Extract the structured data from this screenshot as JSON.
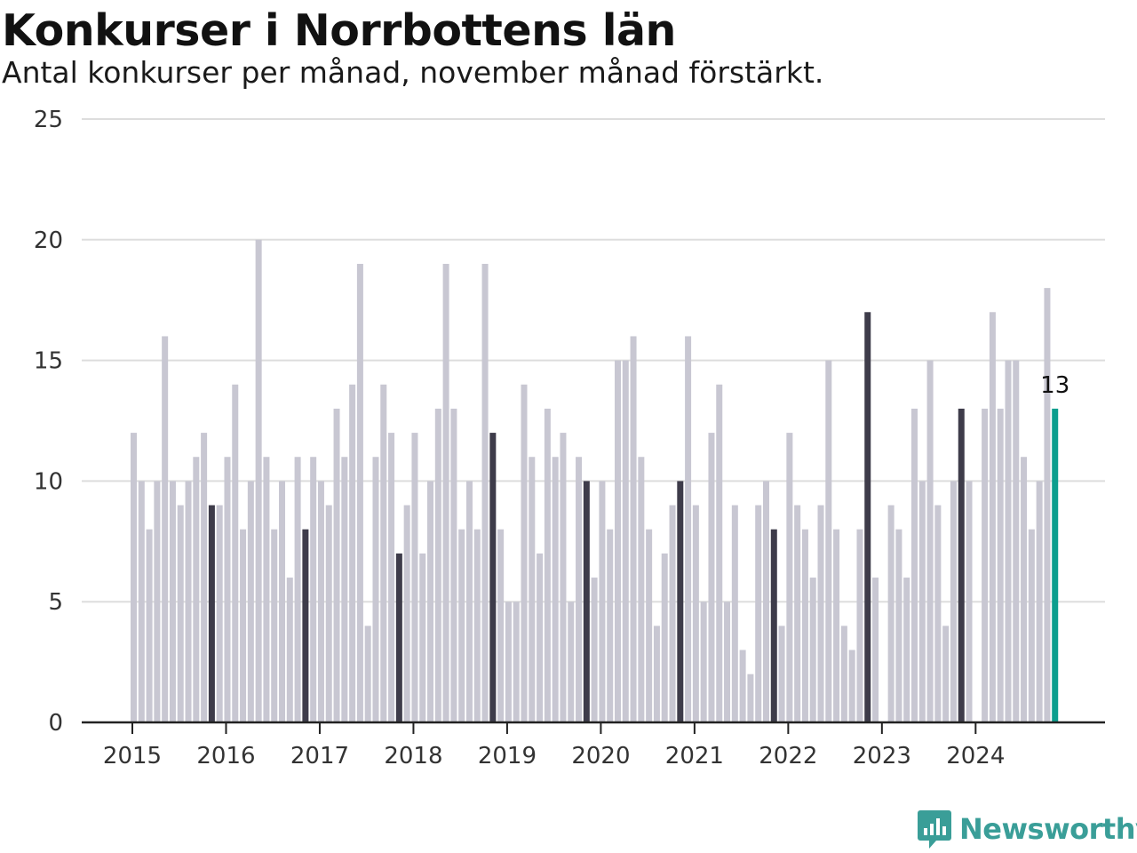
{
  "header": {
    "title": "Konkurser i Norrbottens län",
    "subtitle": "Antal konkurser per månad, november månad förstärkt."
  },
  "brand": {
    "name": "Newsworthy",
    "color": "#3a9e98",
    "icon": "bar-chart-speech-bubble-icon"
  },
  "colors": {
    "default": "#c8c7d2",
    "highlight": "#3e3c4a",
    "latest": "#0c9e8e",
    "grid": "#dddddd",
    "axis": "#222222"
  },
  "chart_data": {
    "type": "bar",
    "title": "Konkurser i Norrbottens län",
    "subtitle": "Antal konkurser per månad, november månad förstärkt.",
    "start": "2015-01",
    "ylim": [
      0,
      25
    ],
    "yticks": [
      0,
      5,
      10,
      15,
      20,
      25
    ],
    "xticks": [
      "2015",
      "2016",
      "2017",
      "2018",
      "2019",
      "2020",
      "2021",
      "2022",
      "2023",
      "2024"
    ],
    "grid": true,
    "highlighted_month": "november",
    "latest_label": "13",
    "values": [
      12,
      10,
      8,
      10,
      16,
      10,
      9,
      10,
      11,
      12,
      9,
      9,
      11,
      14,
      8,
      10,
      20,
      11,
      8,
      10,
      6,
      11,
      8,
      11,
      10,
      9,
      13,
      11,
      14,
      19,
      4,
      11,
      14,
      12,
      7,
      9,
      12,
      7,
      10,
      13,
      19,
      13,
      8,
      10,
      8,
      19,
      12,
      8,
      5,
      5,
      14,
      11,
      7,
      13,
      11,
      12,
      5,
      11,
      10,
      6,
      10,
      8,
      15,
      15,
      16,
      11,
      8,
      4,
      7,
      9,
      10,
      16,
      9,
      5,
      12,
      14,
      5,
      9,
      3,
      2,
      9,
      10,
      8,
      4,
      12,
      9,
      8,
      6,
      9,
      15,
      8,
      4,
      3,
      8,
      17,
      6,
      0,
      9,
      8,
      6,
      13,
      10,
      15,
      9,
      4,
      10,
      13,
      10,
      0,
      13,
      17,
      13,
      15,
      15,
      11,
      8,
      10,
      18,
      13
    ]
  }
}
